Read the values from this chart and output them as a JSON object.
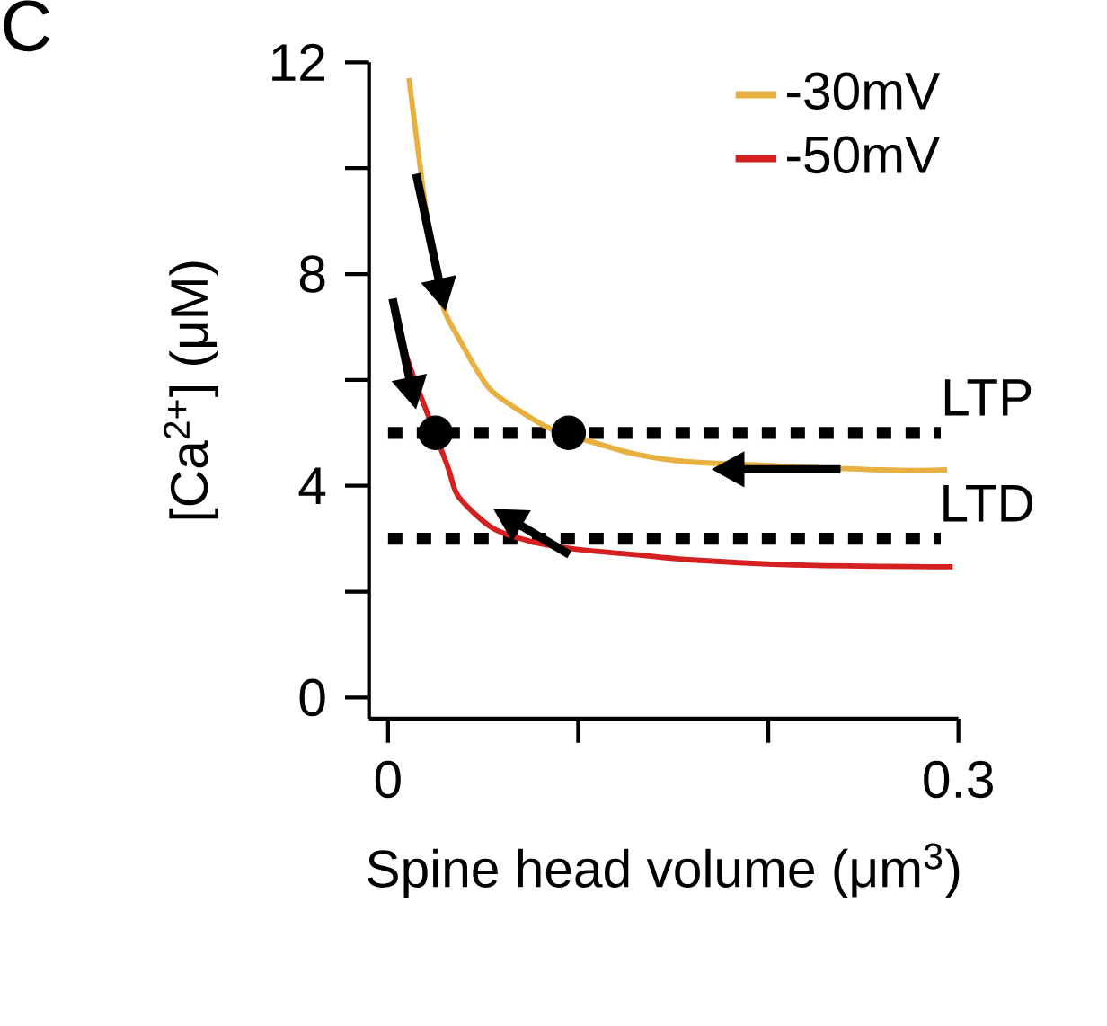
{
  "chart_data": {
    "type": "line",
    "xlabel": "Spine head volume (μm$^{3}$)",
    "ylabel": "[Ca$^{2+}$] (μM)",
    "annotations": [
      "C"
    ],
    "xlim": [
      -0.01,
      0.3
    ],
    "ylim": [
      -0.4,
      12
    ],
    "xticks": [
      0,
      {
        "value": 0.1,
        "label": null
      },
      {
        "value": 0.2,
        "label": null
      },
      0.3
    ],
    "yticks": [
      0,
      {
        "value": 2,
        "label": null
      },
      4,
      {
        "value": 6,
        "label": null
      },
      8,
      {
        "value": 10,
        "label": null
      },
      12
    ],
    "legend": "top right",
    "grid": false,
    "series": [
      {
        "name": "-30mV",
        "color": "#e8b040",
        "marker": "none",
        "line_style": "solid",
        "x": [
          0.011,
          0.02,
          0.028,
          0.037,
          0.053,
          0.07,
          0.086,
          0.11,
          0.13,
          0.16,
          0.26,
          0.294
        ],
        "values": [
          11.7,
          9.2,
          7.5,
          6.8,
          5.85,
          5.4,
          5.07,
          4.8,
          4.6,
          4.45,
          4.3,
          4.3
        ]
      },
      {
        "name": "-50mV",
        "color": "#d42020",
        "marker": "none",
        "line_style": "solid",
        "x": [
          0.003,
          0.012,
          0.031,
          0.037,
          0.055,
          0.075,
          0.099,
          0.13,
          0.16,
          0.22,
          0.297
        ],
        "values": [
          7.3,
          6.2,
          4.4,
          3.8,
          3.2,
          2.95,
          2.8,
          2.7,
          2.6,
          2.5,
          2.47
        ]
      },
      {
        "type": "scatter",
        "color": "#000000",
        "marker": "circle",
        "x": [
          0.025,
          0.095
        ],
        "values": [
          5,
          5
        ]
      }
    ],
    "ref_lines": [
      {
        "axis": "y",
        "value": 5,
        "label": "LTP",
        "color": "#000000",
        "line_style": "dotted"
      },
      {
        "axis": "y",
        "value": 3,
        "label": "LTD",
        "color": "#000000",
        "line_style": "dotted"
      }
    ]
  }
}
